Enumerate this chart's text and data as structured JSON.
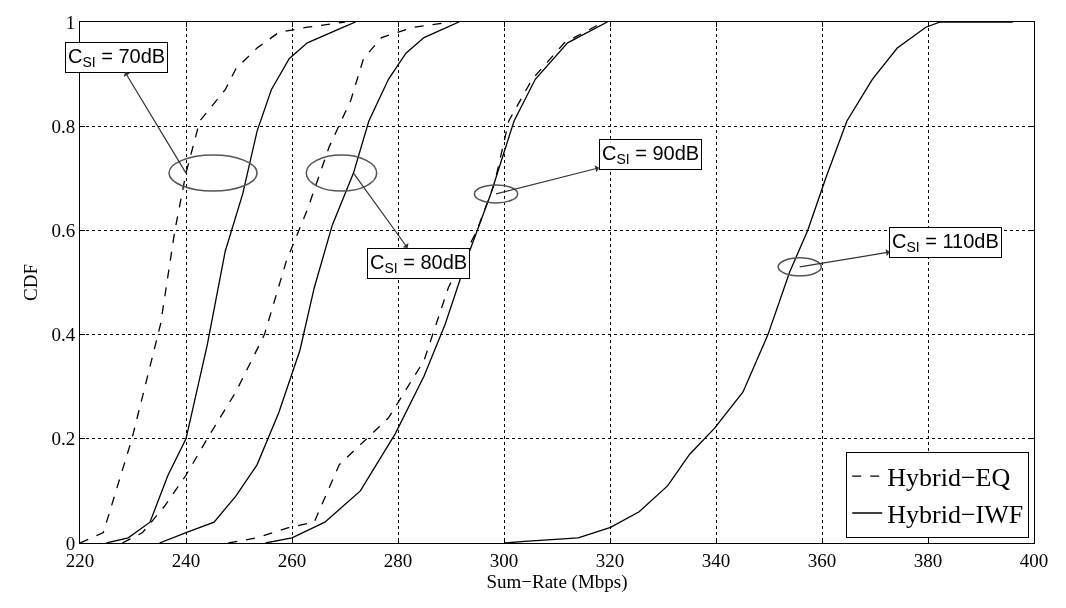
{
  "chart_data": {
    "type": "line",
    "xlabel": "Sum−Rate (Mbps)",
    "ylabel": "CDF",
    "xlim": [
      220,
      400
    ],
    "xticks": [
      220,
      240,
      260,
      280,
      300,
      320,
      340,
      360,
      380,
      400
    ],
    "ylim": [
      0,
      1
    ],
    "yticks": [
      0,
      0.2,
      0.4,
      0.6,
      0.8,
      1
    ],
    "grid": true,
    "legend": "bottom right",
    "marker": "none",
    "series": [
      {
        "name": "Hybrid−EQ",
        "color": "#000000",
        "line_style": "dashed",
        "x": [
          220,
          224.4,
          229.8,
          235.2,
          237.9,
          240,
          242.6,
          247.4,
          249.4,
          253.4,
          257.5,
          262.9,
          270
        ],
        "values": [
          0,
          0.02,
          0.2,
          0.42,
          0.6,
          0.71,
          0.81,
          0.87,
          0.91,
          0.95,
          0.98,
          0.99,
          1
        ]
      },
      {
        "name": "Hybrid−IWF",
        "color": "#000000",
        "line_style": "solid",
        "x": [
          225,
          229.1,
          233.2,
          236.6,
          240,
          244,
          247.4,
          250.7,
          253.4,
          256.1,
          259.5,
          262.9,
          269.7,
          272
        ],
        "values": [
          0,
          0.01,
          0.04,
          0.13,
          0.2,
          0.38,
          0.56,
          0.67,
          0.79,
          0.87,
          0.93,
          0.96,
          0.99,
          1
        ]
      },
      {
        "color": "#000000",
        "line_style": "dashed",
        "x": [
          228,
          231.8,
          235.9,
          240,
          244,
          249.4,
          254.8,
          258.9,
          262.9,
          267,
          271.1,
          273.5,
          276.9,
          282.9,
          290
        ],
        "values": [
          0,
          0.02,
          0.07,
          0.13,
          0.2,
          0.29,
          0.4,
          0.54,
          0.64,
          0.76,
          0.85,
          0.93,
          0.97,
          0.99,
          1
        ]
      },
      {
        "color": "#000000",
        "line_style": "solid",
        "x": [
          235,
          240,
          245.3,
          249.4,
          253.4,
          257.5,
          261.5,
          264.2,
          267.6,
          271.6,
          274.5,
          278.2,
          281.5,
          284.9,
          291.5
        ],
        "values": [
          0,
          0.02,
          0.04,
          0.09,
          0.15,
          0.25,
          0.37,
          0.49,
          0.61,
          0.71,
          0.81,
          0.89,
          0.94,
          0.97,
          1
        ]
      },
      {
        "color": "#000000",
        "line_style": "dashed",
        "x": [
          248,
          253.4,
          259.5,
          264.2,
          268.9,
          278.2,
          284.9,
          289.5,
          294.9,
          298.2,
          300.9,
          305.3,
          311.4,
          318.8
        ],
        "values": [
          0,
          0.01,
          0.03,
          0.04,
          0.15,
          0.24,
          0.35,
          0.49,
          0.6,
          0.69,
          0.81,
          0.89,
          0.96,
          1
        ]
      },
      {
        "color": "#000000",
        "line_style": "solid",
        "x": [
          255,
          260,
          266.2,
          272.9,
          279.5,
          284.9,
          288.9,
          293.5,
          297.5,
          301.9,
          305.9,
          312,
          319.5
        ],
        "values": [
          0,
          0.01,
          0.04,
          0.1,
          0.21,
          0.32,
          0.42,
          0.56,
          0.67,
          0.81,
          0.89,
          0.96,
          1
        ]
      },
      {
        "color": "#000000",
        "line_style": "solid",
        "x": [
          300,
          303.9,
          314,
          320.1,
          325.5,
          330.9,
          335,
          339.7,
          345.1,
          349.8,
          353.9,
          357.3,
          360.7,
          364.7,
          369.5,
          374.2,
          379.6,
          382.3,
          396
        ],
        "values": [
          0,
          0.003,
          0.01,
          0.03,
          0.06,
          0.11,
          0.17,
          0.22,
          0.29,
          0.4,
          0.52,
          0.6,
          0.7,
          0.81,
          0.89,
          0.95,
          0.99,
          1,
          1
        ]
      }
    ],
    "annotations": [
      {
        "text": "C$_{SI}$ = 70dB",
        "x": 240,
        "y": 0.71
      },
      {
        "text": "C$_{SI}$ = 80dB",
        "x": 271.6,
        "y": 0.71
      },
      {
        "text": "C$_{SI}$ = 90dB",
        "x": 298.5,
        "y": 0.67
      },
      {
        "text": "C$_{SI}$ = 110dB",
        "x": 355.8,
        "y": 0.53
      }
    ]
  }
}
